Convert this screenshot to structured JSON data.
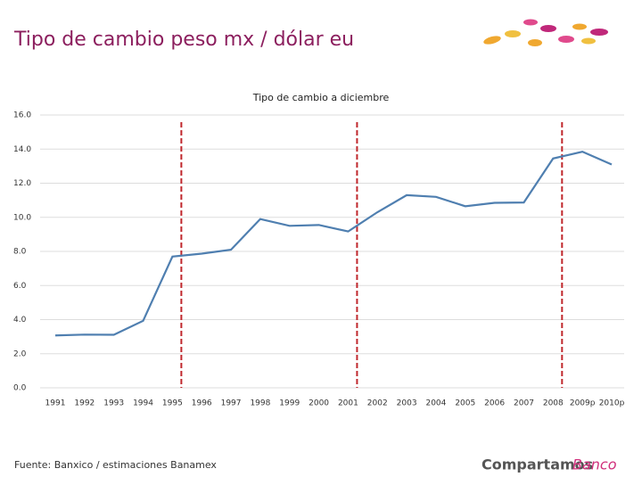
{
  "slide": {
    "title": "Tipo de cambio peso mx / dólar eu",
    "source": "Fuente: Banxico / estimaciones Banamex",
    "brand": "Compartamos",
    "brand_suffix": "Banco"
  },
  "chart_data": {
    "type": "line",
    "title": "Tipo de cambio a diciembre",
    "categories": [
      "1991",
      "1992",
      "1993",
      "1994",
      "1995",
      "1996",
      "1997",
      "1998",
      "1999",
      "2000",
      "2001",
      "2002",
      "2003",
      "2004",
      "2005",
      "2006",
      "2007",
      "2008",
      "2009p",
      "2010p"
    ],
    "series": [
      {
        "color": "#4f7fb0",
        "values": [
          3.07,
          3.12,
          3.11,
          3.93,
          7.7,
          7.87,
          8.1,
          9.9,
          9.5,
          9.55,
          9.17,
          10.3,
          11.3,
          11.2,
          10.65,
          10.85,
          10.87,
          13.45,
          13.85,
          13.1
        ]
      }
    ],
    "ylim": [
      0,
      16
    ],
    "yticks": [
      {
        "value": 0,
        "label": "0.0"
      },
      {
        "value": 2,
        "label": "2.0"
      },
      {
        "value": 4,
        "label": "4.0"
      },
      {
        "value": 6,
        "label": "6.0"
      },
      {
        "value": 8,
        "label": "8.0"
      },
      {
        "value": 10,
        "label": "10.0"
      },
      {
        "value": 12,
        "label": "12.0"
      },
      {
        "value": 14,
        "label": "14.0"
      },
      {
        "value": 16,
        "label": "16.0"
      }
    ],
    "grid": true,
    "reference_lines": {
      "color": "#c0282d",
      "categories": [
        "1995",
        "2001",
        "2008"
      ]
    }
  }
}
